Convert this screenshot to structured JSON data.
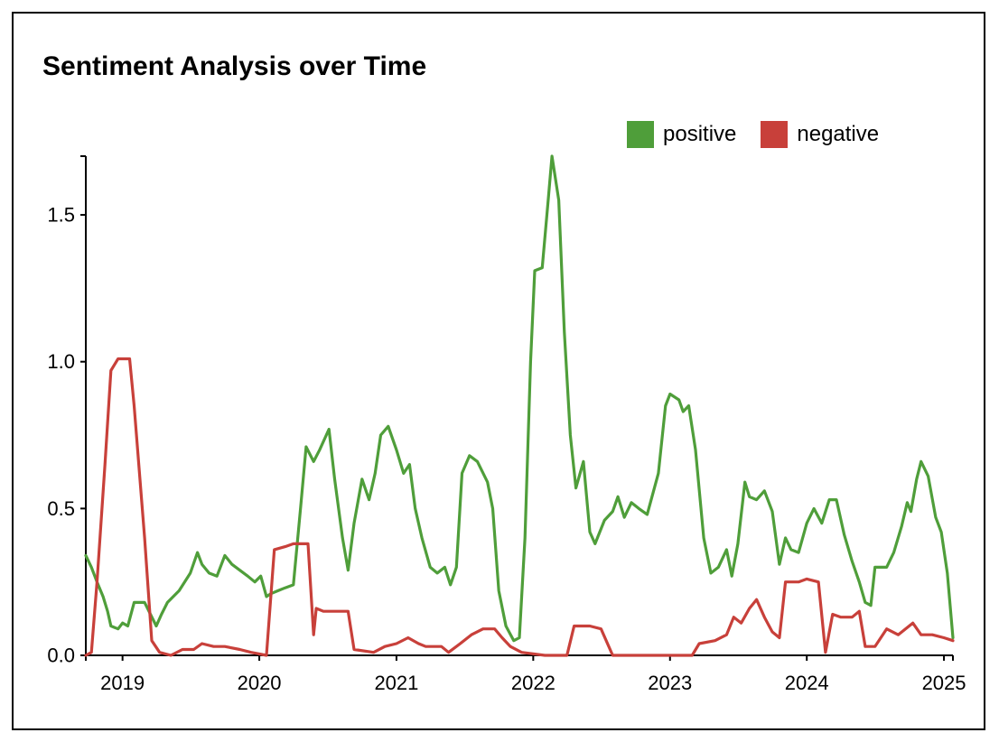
{
  "chart_data": {
    "type": "line",
    "title": "Sentiment Analysis over Time",
    "xlabel": "",
    "ylabel": "",
    "xlim": [
      "2018-09-25",
      "2025-01-25"
    ],
    "ylim": [
      0,
      1.7
    ],
    "x_ticks": [
      "2019",
      "2020",
      "2021",
      "2022",
      "2023",
      "2024",
      "2025"
    ],
    "y_ticks": [
      "0.0",
      "0.5",
      "1.0",
      "1.5"
    ],
    "grid": false,
    "legend": "top-right",
    "series": [
      {
        "name": "positive",
        "color": "#4f9e3a",
        "points": [
          [
            "2018-09-25",
            0.34
          ],
          [
            "2018-10-10",
            0.3
          ],
          [
            "2018-10-25",
            0.25
          ],
          [
            "2018-11-10",
            0.2
          ],
          [
            "2018-11-22",
            0.15
          ],
          [
            "2018-12-01",
            0.1
          ],
          [
            "2018-12-20",
            0.09
          ],
          [
            "2019-01-01",
            0.11
          ],
          [
            "2019-01-15",
            0.1
          ],
          [
            "2019-02-01",
            0.18
          ],
          [
            "2019-03-01",
            0.18
          ],
          [
            "2019-04-01",
            0.1
          ],
          [
            "2019-04-15",
            0.14
          ],
          [
            "2019-05-01",
            0.18
          ],
          [
            "2019-06-01",
            0.22
          ],
          [
            "2019-07-01",
            0.28
          ],
          [
            "2019-07-20",
            0.35
          ],
          [
            "2019-08-01",
            0.31
          ],
          [
            "2019-08-20",
            0.28
          ],
          [
            "2019-09-10",
            0.27
          ],
          [
            "2019-10-01",
            0.34
          ],
          [
            "2019-10-20",
            0.31
          ],
          [
            "2019-11-10",
            0.29
          ],
          [
            "2019-12-01",
            0.27
          ],
          [
            "2019-12-20",
            0.25
          ],
          [
            "2020-01-05",
            0.27
          ],
          [
            "2020-01-20",
            0.2
          ],
          [
            "2020-02-01",
            0.21
          ],
          [
            "2020-02-20",
            0.22
          ],
          [
            "2020-03-10",
            0.23
          ],
          [
            "2020-04-01",
            0.24
          ],
          [
            "2020-04-20",
            0.5
          ],
          [
            "2020-05-05",
            0.71
          ],
          [
            "2020-05-25",
            0.66
          ],
          [
            "2020-06-10",
            0.7
          ],
          [
            "2020-07-05",
            0.77
          ],
          [
            "2020-07-20",
            0.6
          ],
          [
            "2020-08-10",
            0.4
          ],
          [
            "2020-08-25",
            0.29
          ],
          [
            "2020-09-10",
            0.45
          ],
          [
            "2020-10-01",
            0.6
          ],
          [
            "2020-10-20",
            0.53
          ],
          [
            "2020-11-05",
            0.62
          ],
          [
            "2020-11-20",
            0.75
          ],
          [
            "2020-12-10",
            0.78
          ],
          [
            "2021-01-01",
            0.7
          ],
          [
            "2021-01-20",
            0.62
          ],
          [
            "2021-02-05",
            0.65
          ],
          [
            "2021-02-20",
            0.5
          ],
          [
            "2021-03-10",
            0.4
          ],
          [
            "2021-04-01",
            0.3
          ],
          [
            "2021-04-20",
            0.28
          ],
          [
            "2021-05-10",
            0.3
          ],
          [
            "2021-05-25",
            0.24
          ],
          [
            "2021-06-10",
            0.3
          ],
          [
            "2021-06-25",
            0.62
          ],
          [
            "2021-07-15",
            0.68
          ],
          [
            "2021-08-05",
            0.66
          ],
          [
            "2021-09-01",
            0.59
          ],
          [
            "2021-09-15",
            0.5
          ],
          [
            "2021-10-01",
            0.22
          ],
          [
            "2021-10-20",
            0.1
          ],
          [
            "2021-11-10",
            0.05
          ],
          [
            "2021-11-25",
            0.06
          ],
          [
            "2021-12-10",
            0.4
          ],
          [
            "2021-12-25",
            1.0
          ],
          [
            "2022-01-05",
            1.31
          ],
          [
            "2022-01-25",
            1.32
          ],
          [
            "2022-02-10",
            1.55
          ],
          [
            "2022-02-20",
            1.7
          ],
          [
            "2022-03-10",
            1.55
          ],
          [
            "2022-03-25",
            1.1
          ],
          [
            "2022-04-10",
            0.75
          ],
          [
            "2022-04-25",
            0.57
          ],
          [
            "2022-05-15",
            0.66
          ],
          [
            "2022-06-01",
            0.42
          ],
          [
            "2022-06-15",
            0.38
          ],
          [
            "2022-07-10",
            0.46
          ],
          [
            "2022-08-01",
            0.49
          ],
          [
            "2022-08-15",
            0.54
          ],
          [
            "2022-09-01",
            0.47
          ],
          [
            "2022-09-20",
            0.52
          ],
          [
            "2022-10-10",
            0.5
          ],
          [
            "2022-11-01",
            0.48
          ],
          [
            "2022-12-01",
            0.62
          ],
          [
            "2022-12-20",
            0.85
          ],
          [
            "2023-01-01",
            0.89
          ],
          [
            "2023-01-25",
            0.87
          ],
          [
            "2023-02-05",
            0.83
          ],
          [
            "2023-02-20",
            0.85
          ],
          [
            "2023-03-10",
            0.7
          ],
          [
            "2023-04-01",
            0.4
          ],
          [
            "2023-04-20",
            0.28
          ],
          [
            "2023-05-10",
            0.3
          ],
          [
            "2023-06-01",
            0.36
          ],
          [
            "2023-06-15",
            0.27
          ],
          [
            "2023-07-01",
            0.38
          ],
          [
            "2023-07-20",
            0.59
          ],
          [
            "2023-08-01",
            0.54
          ],
          [
            "2023-08-20",
            0.53
          ],
          [
            "2023-09-10",
            0.56
          ],
          [
            "2023-10-01",
            0.49
          ],
          [
            "2023-10-20",
            0.31
          ],
          [
            "2023-11-05",
            0.4
          ],
          [
            "2023-11-20",
            0.36
          ],
          [
            "2023-12-10",
            0.35
          ],
          [
            "2024-01-01",
            0.45
          ],
          [
            "2024-01-20",
            0.5
          ],
          [
            "2024-02-10",
            0.45
          ],
          [
            "2024-03-01",
            0.53
          ],
          [
            "2024-03-20",
            0.53
          ],
          [
            "2024-04-10",
            0.41
          ],
          [
            "2024-05-01",
            0.32
          ],
          [
            "2024-05-20",
            0.25
          ],
          [
            "2024-06-05",
            0.18
          ],
          [
            "2024-06-20",
            0.17
          ],
          [
            "2024-07-01",
            0.3
          ],
          [
            "2024-08-01",
            0.3
          ],
          [
            "2024-08-20",
            0.35
          ],
          [
            "2024-09-10",
            0.44
          ],
          [
            "2024-09-25",
            0.52
          ],
          [
            "2024-10-05",
            0.49
          ],
          [
            "2024-10-20",
            0.6
          ],
          [
            "2024-11-01",
            0.66
          ],
          [
            "2024-11-20",
            0.61
          ],
          [
            "2024-12-10",
            0.47
          ],
          [
            "2024-12-25",
            0.42
          ],
          [
            "2025-01-10",
            0.28
          ],
          [
            "2025-01-25",
            0.06
          ]
        ]
      },
      {
        "name": "negative",
        "color": "#c8403a",
        "points": [
          [
            "2018-09-25",
            0.0
          ],
          [
            "2018-10-10",
            0.01
          ],
          [
            "2018-10-25",
            0.25
          ],
          [
            "2018-11-15",
            0.65
          ],
          [
            "2018-12-01",
            0.97
          ],
          [
            "2018-12-20",
            1.01
          ],
          [
            "2019-01-20",
            1.01
          ],
          [
            "2019-02-01",
            0.85
          ],
          [
            "2019-03-01",
            0.4
          ],
          [
            "2019-03-20",
            0.05
          ],
          [
            "2019-04-10",
            0.01
          ],
          [
            "2019-05-10",
            0.0
          ],
          [
            "2019-06-10",
            0.02
          ],
          [
            "2019-07-10",
            0.02
          ],
          [
            "2019-08-01",
            0.04
          ],
          [
            "2019-09-01",
            0.03
          ],
          [
            "2019-10-01",
            0.03
          ],
          [
            "2019-11-10",
            0.02
          ],
          [
            "2019-12-10",
            0.01
          ],
          [
            "2020-01-20",
            0.0
          ],
          [
            "2020-02-10",
            0.36
          ],
          [
            "2020-03-10",
            0.37
          ],
          [
            "2020-04-01",
            0.38
          ],
          [
            "2020-05-10",
            0.38
          ],
          [
            "2020-05-25",
            0.07
          ],
          [
            "2020-06-01",
            0.16
          ],
          [
            "2020-06-20",
            0.15
          ],
          [
            "2020-07-10",
            0.15
          ],
          [
            "2020-08-25",
            0.15
          ],
          [
            "2020-09-10",
            0.02
          ],
          [
            "2020-11-01",
            0.01
          ],
          [
            "2020-12-01",
            0.03
          ],
          [
            "2021-01-01",
            0.04
          ],
          [
            "2021-02-01",
            0.06
          ],
          [
            "2021-03-01",
            0.04
          ],
          [
            "2021-03-20",
            0.03
          ],
          [
            "2021-05-01",
            0.03
          ],
          [
            "2021-05-20",
            0.01
          ],
          [
            "2021-06-20",
            0.04
          ],
          [
            "2021-07-20",
            0.07
          ],
          [
            "2021-08-20",
            0.09
          ],
          [
            "2021-09-20",
            0.09
          ],
          [
            "2021-10-10",
            0.06
          ],
          [
            "2021-11-01",
            0.03
          ],
          [
            "2021-12-01",
            0.01
          ],
          [
            "2022-02-01",
            0.0
          ],
          [
            "2022-03-01",
            0.0
          ],
          [
            "2022-04-01",
            0.0
          ],
          [
            "2022-04-20",
            0.1
          ],
          [
            "2022-06-01",
            0.1
          ],
          [
            "2022-07-01",
            0.09
          ],
          [
            "2022-08-01",
            0.0
          ],
          [
            "2022-09-01",
            0.0
          ],
          [
            "2022-12-01",
            0.0
          ],
          [
            "2023-03-01",
            0.0
          ],
          [
            "2023-03-20",
            0.04
          ],
          [
            "2023-05-01",
            0.05
          ],
          [
            "2023-06-01",
            0.07
          ],
          [
            "2023-06-20",
            0.13
          ],
          [
            "2023-07-10",
            0.11
          ],
          [
            "2023-08-01",
            0.16
          ],
          [
            "2023-08-20",
            0.19
          ],
          [
            "2023-09-10",
            0.13
          ],
          [
            "2023-10-01",
            0.08
          ],
          [
            "2023-10-20",
            0.06
          ],
          [
            "2023-11-05",
            0.25
          ],
          [
            "2023-12-10",
            0.25
          ],
          [
            "2024-01-01",
            0.26
          ],
          [
            "2024-02-01",
            0.25
          ],
          [
            "2024-02-20",
            0.01
          ],
          [
            "2024-03-10",
            0.14
          ],
          [
            "2024-04-01",
            0.13
          ],
          [
            "2024-05-01",
            0.13
          ],
          [
            "2024-05-20",
            0.15
          ],
          [
            "2024-06-05",
            0.03
          ],
          [
            "2024-07-01",
            0.03
          ],
          [
            "2024-08-01",
            0.09
          ],
          [
            "2024-09-01",
            0.07
          ],
          [
            "2024-10-10",
            0.11
          ],
          [
            "2024-11-01",
            0.07
          ],
          [
            "2024-12-01",
            0.07
          ],
          [
            "2025-01-01",
            0.06
          ],
          [
            "2025-01-25",
            0.05
          ]
        ]
      }
    ]
  }
}
